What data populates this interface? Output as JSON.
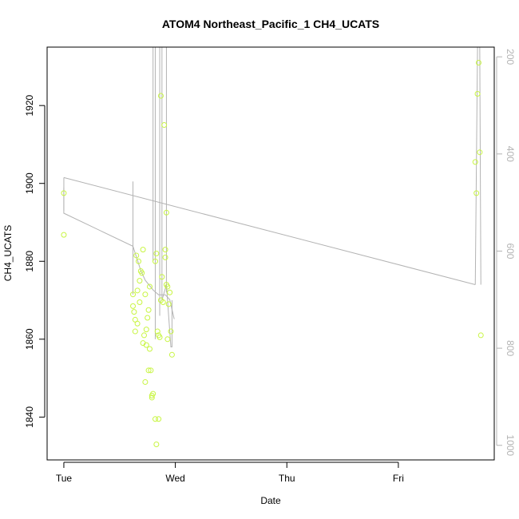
{
  "chart_data": {
    "type": "scatter",
    "title": "ATOM4 Northeast_Pacific_1 CH4_UCATS",
    "xlabel": "Date",
    "ylabel": "CH4_UCATS",
    "x_unit": "days since Tue 00:00",
    "xlim": [
      -0.15,
      3.86
    ],
    "ylim": [
      1829,
      1935
    ],
    "x_ticks": [
      {
        "value": 0,
        "label": "Tue"
      },
      {
        "value": 1,
        "label": "Wed"
      },
      {
        "value": 2,
        "label": "Thu"
      },
      {
        "value": 3,
        "label": "Fri"
      }
    ],
    "y_ticks": [
      1840,
      1860,
      1880,
      1900,
      1920
    ],
    "right_axis": {
      "ticks": [
        200,
        400,
        600,
        800,
        1000
      ],
      "lim": [
        180,
        1030
      ],
      "color": "#b3b3b3"
    },
    "grid": false,
    "legend": "none",
    "point_color": "#c8f542",
    "line_color": "#b3b3b3",
    "points": [
      {
        "x": 0.0,
        "y": 1897.5
      },
      {
        "x": 0.0,
        "y": 1886.8
      },
      {
        "x": 0.62,
        "y": 1871.5
      },
      {
        "x": 0.62,
        "y": 1868.5
      },
      {
        "x": 0.63,
        "y": 1867.0
      },
      {
        "x": 0.64,
        "y": 1865.0
      },
      {
        "x": 0.64,
        "y": 1862.0
      },
      {
        "x": 0.65,
        "y": 1881.5
      },
      {
        "x": 0.66,
        "y": 1872.5
      },
      {
        "x": 0.66,
        "y": 1864.0
      },
      {
        "x": 0.67,
        "y": 1880.0
      },
      {
        "x": 0.68,
        "y": 1869.5
      },
      {
        "x": 0.68,
        "y": 1875.0
      },
      {
        "x": 0.69,
        "y": 1877.5
      },
      {
        "x": 0.7,
        "y": 1877.0
      },
      {
        "x": 0.71,
        "y": 1883.0
      },
      {
        "x": 0.71,
        "y": 1859.0
      },
      {
        "x": 0.72,
        "y": 1861.0
      },
      {
        "x": 0.73,
        "y": 1849.0
      },
      {
        "x": 0.73,
        "y": 1871.5
      },
      {
        "x": 0.74,
        "y": 1862.5
      },
      {
        "x": 0.74,
        "y": 1858.5
      },
      {
        "x": 0.75,
        "y": 1865.5
      },
      {
        "x": 0.76,
        "y": 1852.0
      },
      {
        "x": 0.76,
        "y": 1867.5
      },
      {
        "x": 0.77,
        "y": 1873.5
      },
      {
        "x": 0.77,
        "y": 1857.5
      },
      {
        "x": 0.78,
        "y": 1852.0
      },
      {
        "x": 0.79,
        "y": 1845.5
      },
      {
        "x": 0.79,
        "y": 1845.0
      },
      {
        "x": 0.8,
        "y": 1846.0
      },
      {
        "x": 0.82,
        "y": 1839.5
      },
      {
        "x": 0.82,
        "y": 1880.0
      },
      {
        "x": 0.83,
        "y": 1882.0
      },
      {
        "x": 0.83,
        "y": 1833.0
      },
      {
        "x": 0.84,
        "y": 1862.0
      },
      {
        "x": 0.85,
        "y": 1861.0
      },
      {
        "x": 0.85,
        "y": 1839.5
      },
      {
        "x": 0.86,
        "y": 1860.5
      },
      {
        "x": 0.87,
        "y": 1870.0
      },
      {
        "x": 0.87,
        "y": 1922.5
      },
      {
        "x": 0.88,
        "y": 1876.0
      },
      {
        "x": 0.89,
        "y": 1869.5
      },
      {
        "x": 0.9,
        "y": 1915.0
      },
      {
        "x": 0.91,
        "y": 1883.0
      },
      {
        "x": 0.91,
        "y": 1881.0
      },
      {
        "x": 0.92,
        "y": 1874.0
      },
      {
        "x": 0.92,
        "y": 1892.5
      },
      {
        "x": 0.93,
        "y": 1873.5
      },
      {
        "x": 0.93,
        "y": 1860.0
      },
      {
        "x": 0.94,
        "y": 1869.0
      },
      {
        "x": 0.95,
        "y": 1872.0
      },
      {
        "x": 0.96,
        "y": 1862.0
      },
      {
        "x": 0.97,
        "y": 1856.0
      },
      {
        "x": 3.69,
        "y": 1905.5
      },
      {
        "x": 3.7,
        "y": 1897.5
      },
      {
        "x": 3.71,
        "y": 1923.0
      },
      {
        "x": 3.72,
        "y": 1931.0
      },
      {
        "x": 3.73,
        "y": 1908.0
      },
      {
        "x": 3.74,
        "y": 1861.0
      }
    ],
    "line_right_axis": [
      [
        0.0,
        470
      ],
      [
        0.0,
        522
      ],
      [
        0.62,
        590
      ],
      [
        0.69,
        640
      ],
      [
        0.73,
        660
      ],
      [
        0.8,
        680
      ],
      [
        0.85,
        690
      ],
      [
        0.91,
        690
      ],
      [
        0.95,
        700
      ],
      [
        0.96,
        710
      ],
      [
        0.99,
        740
      ]
    ]
  }
}
